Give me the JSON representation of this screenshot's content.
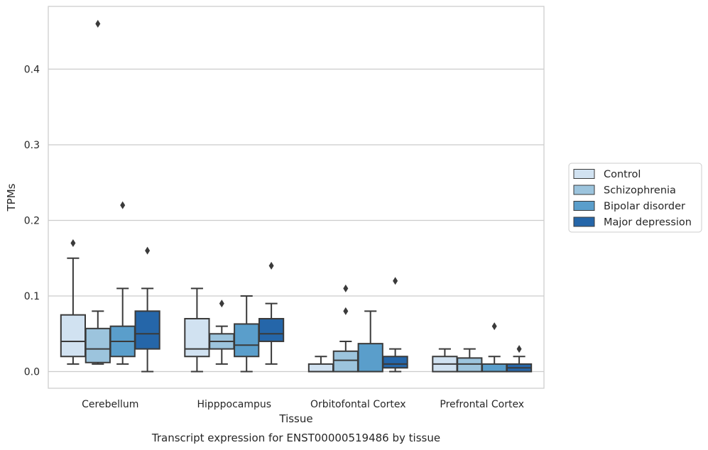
{
  "chart_data": {
    "type": "box",
    "caption": "Transcript expression for ENST00000519486 by tissue",
    "xlabel": "Tissue",
    "ylabel": "TPMs",
    "ylim": [
      -0.022,
      0.483
    ],
    "yticks": [
      0.0,
      0.1,
      0.2,
      0.3,
      0.4
    ],
    "ytick_labels": [
      "0.0",
      "0.1",
      "0.2",
      "0.3",
      "0.4"
    ],
    "grid": true,
    "legend_placement": "right-outside",
    "categories": [
      "Cerebellum",
      "Hipppocampus",
      "Orbitofontal Cortex",
      "Prefrontal Cortex"
    ],
    "series": [
      {
        "name": "Control",
        "color": "#d1e2f1",
        "boxes": [
          {
            "whislo": 0.01,
            "q1": 0.02,
            "med": 0.04,
            "q3": 0.075,
            "whishi": 0.15,
            "fliers": [
              0.17
            ]
          },
          {
            "whislo": 0.0,
            "q1": 0.02,
            "med": 0.03,
            "q3": 0.07,
            "whishi": 0.11,
            "fliers": []
          },
          {
            "whislo": 0.0,
            "q1": 0.0,
            "med": 0.0,
            "q3": 0.01,
            "whishi": 0.02,
            "fliers": []
          },
          {
            "whislo": 0.0,
            "q1": 0.0,
            "med": 0.01,
            "q3": 0.02,
            "whishi": 0.03,
            "fliers": []
          }
        ]
      },
      {
        "name": "Schizophrenia",
        "color": "#9cc4dd",
        "boxes": [
          {
            "whislo": 0.01,
            "q1": 0.012,
            "med": 0.03,
            "q3": 0.057,
            "whishi": 0.08,
            "fliers": [
              0.46
            ]
          },
          {
            "whislo": 0.01,
            "q1": 0.03,
            "med": 0.04,
            "q3": 0.05,
            "whishi": 0.06,
            "fliers": [
              0.09
            ]
          },
          {
            "whislo": 0.0,
            "q1": 0.0,
            "med": 0.015,
            "q3": 0.027,
            "whishi": 0.04,
            "fliers": [
              0.08,
              0.11
            ]
          },
          {
            "whislo": 0.0,
            "q1": 0.0,
            "med": 0.01,
            "q3": 0.018,
            "whishi": 0.03,
            "fliers": []
          }
        ]
      },
      {
        "name": "Bipolar disorder",
        "color": "#5a9ecb",
        "boxes": [
          {
            "whislo": 0.01,
            "q1": 0.02,
            "med": 0.04,
            "q3": 0.06,
            "whishi": 0.11,
            "fliers": [
              0.22
            ]
          },
          {
            "whislo": 0.0,
            "q1": 0.02,
            "med": 0.035,
            "q3": 0.063,
            "whishi": 0.1,
            "fliers": []
          },
          {
            "whislo": 0.0,
            "q1": 0.0,
            "med": 0.0,
            "q3": 0.037,
            "whishi": 0.08,
            "fliers": []
          },
          {
            "whislo": 0.0,
            "q1": 0.0,
            "med": 0.0,
            "q3": 0.01,
            "whishi": 0.02,
            "fliers": [
              0.06
            ]
          }
        ]
      },
      {
        "name": "Major depression",
        "color": "#2566a9",
        "boxes": [
          {
            "whislo": 0.0,
            "q1": 0.03,
            "med": 0.05,
            "q3": 0.08,
            "whishi": 0.11,
            "fliers": [
              0.16
            ]
          },
          {
            "whislo": 0.01,
            "q1": 0.04,
            "med": 0.05,
            "q3": 0.07,
            "whishi": 0.09,
            "fliers": [
              0.14
            ]
          },
          {
            "whislo": 0.0,
            "q1": 0.005,
            "med": 0.01,
            "q3": 0.02,
            "whishi": 0.03,
            "fliers": [
              0.12
            ]
          },
          {
            "whislo": 0.0,
            "q1": 0.0,
            "med": 0.005,
            "q3": 0.01,
            "whishi": 0.02,
            "fliers": [
              0.03
            ]
          }
        ]
      }
    ]
  }
}
